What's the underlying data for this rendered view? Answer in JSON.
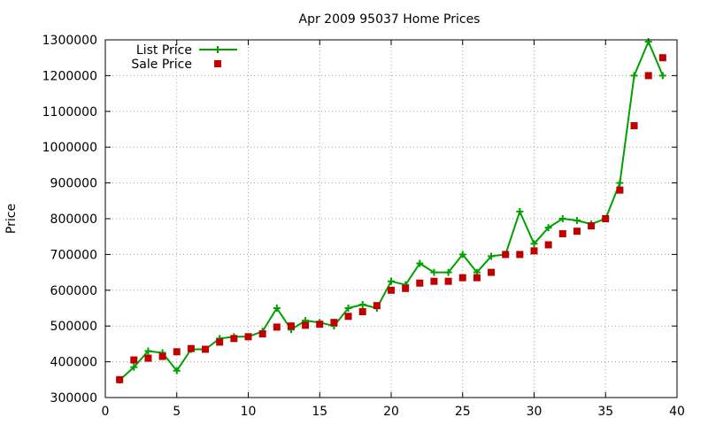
{
  "chart_data": {
    "type": "line",
    "title": "Apr 2009 95037 Home Prices",
    "xlabel": "",
    "ylabel": "Price",
    "xlim": [
      0,
      40
    ],
    "ylim": [
      300000,
      1300000
    ],
    "xticks": [
      0,
      5,
      10,
      15,
      20,
      25,
      30,
      35,
      40
    ],
    "yticks": [
      300000,
      400000,
      500000,
      600000,
      700000,
      800000,
      900000,
      1000000,
      1100000,
      1200000,
      1300000
    ],
    "grid": true,
    "legend_position": "top-left",
    "series": [
      {
        "name": "List Price",
        "style": "line-plus",
        "color": "#00a000",
        "x": [
          1,
          2,
          3,
          4,
          5,
          6,
          7,
          8,
          9,
          10,
          11,
          12,
          13,
          14,
          15,
          16,
          17,
          18,
          19,
          20,
          21,
          22,
          23,
          24,
          25,
          26,
          27,
          28,
          29,
          30,
          31,
          32,
          33,
          34,
          35,
          36,
          37,
          38,
          39
        ],
        "y": [
          349000,
          385000,
          430000,
          425000,
          375000,
          435000,
          435000,
          465000,
          470000,
          470000,
          485000,
          550000,
          490000,
          515000,
          510000,
          500000,
          550000,
          560000,
          550000,
          625000,
          615000,
          675000,
          650000,
          650000,
          700000,
          650000,
          695000,
          700000,
          820000,
          730000,
          775000,
          800000,
          795000,
          785000,
          800000,
          900000,
          1200000,
          1295000,
          1200000
        ]
      },
      {
        "name": "Sale Price",
        "style": "square-markers",
        "color": "#c00000",
        "x": [
          1,
          2,
          3,
          4,
          5,
          6,
          7,
          8,
          9,
          10,
          11,
          12,
          13,
          14,
          15,
          16,
          17,
          18,
          19,
          20,
          21,
          22,
          23,
          24,
          25,
          26,
          27,
          28,
          29,
          30,
          31,
          32,
          33,
          34,
          35,
          36,
          37,
          38,
          39
        ],
        "y": [
          350000,
          405000,
          410000,
          415000,
          428000,
          437000,
          435000,
          455000,
          465000,
          470000,
          478000,
          497000,
          500000,
          502000,
          505000,
          510000,
          527000,
          540000,
          557000,
          600000,
          605000,
          620000,
          625000,
          625000,
          635000,
          635000,
          650000,
          700000,
          700000,
          710000,
          727000,
          758000,
          765000,
          780000,
          800000,
          880000,
          1060000,
          1200000,
          1250000
        ]
      }
    ]
  }
}
